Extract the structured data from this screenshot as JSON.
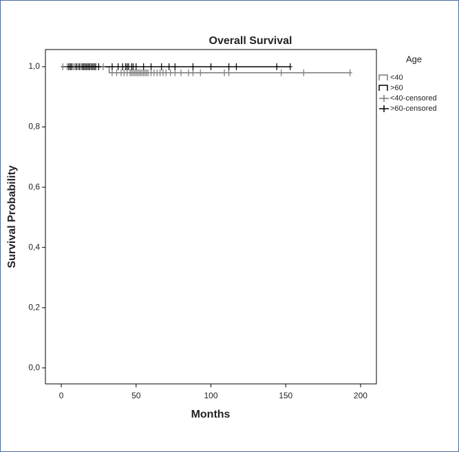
{
  "chart_data": {
    "type": "survival",
    "title": "Overall Survival",
    "x_label": "Months",
    "y_label": "Survival Probability",
    "legend_title": "Age",
    "legend_position": "right",
    "xlim": [
      -10.6,
      210.6
    ],
    "ylim": [
      -0.053,
      1.057
    ],
    "xticks": [
      0,
      50,
      100,
      150,
      200
    ],
    "yticks": [
      {
        "value": 0,
        "label": "0,0"
      },
      {
        "value": 0.2,
        "label": "0,2"
      },
      {
        "value": 0.4,
        "label": "0,4"
      },
      {
        "value": 0.6,
        "label": "0,6"
      },
      {
        "value": 0.8,
        "label": "0,8"
      },
      {
        "value": 1,
        "label": "1,0"
      }
    ],
    "series": [
      {
        "name": "<40",
        "color": "#777777",
        "style": "step",
        "x": [
          0,
          32,
          193
        ],
        "values": [
          1,
          0.98,
          0.98
        ]
      },
      {
        "name": ">60",
        "color": "#000000",
        "style": "step",
        "x": [
          0,
          153
        ],
        "values": [
          1,
          1
        ]
      },
      {
        "name": "<40-censored",
        "color": "#777777",
        "style": "censor",
        "x": [
          1,
          4,
          6,
          8,
          9,
          10,
          11,
          12,
          13,
          14,
          15,
          17,
          19,
          22,
          25,
          28,
          34,
          37,
          40,
          42,
          44,
          46,
          47,
          48,
          49,
          50,
          51,
          52,
          53,
          54,
          55,
          56,
          57,
          58,
          60,
          62,
          64,
          66,
          68,
          70,
          73,
          76,
          80,
          85,
          88,
          93,
          109,
          112,
          147,
          162,
          193
        ],
        "values": [
          1,
          1,
          1,
          1,
          1,
          1,
          1,
          1,
          1,
          1,
          1,
          1,
          1,
          1,
          1,
          1,
          0.98,
          0.98,
          0.98,
          0.98,
          0.98,
          0.98,
          0.98,
          0.98,
          0.98,
          0.98,
          0.98,
          0.98,
          0.98,
          0.98,
          0.98,
          0.98,
          0.98,
          0.98,
          0.98,
          0.98,
          0.98,
          0.98,
          0.98,
          0.98,
          0.98,
          0.98,
          0.98,
          0.98,
          0.98,
          0.98,
          0.98,
          0.98,
          0.98,
          0.98,
          0.98
        ]
      },
      {
        "name": ">60-censored",
        "color": "#000000",
        "style": "censor",
        "x": [
          5,
          6,
          7,
          10,
          12,
          14,
          15,
          16,
          17,
          18,
          19,
          20,
          21,
          22,
          23,
          25,
          34,
          38,
          41,
          43,
          44,
          45,
          47,
          48,
          50,
          55,
          60,
          67,
          72,
          76,
          88,
          100,
          112,
          117,
          144,
          153
        ],
        "values": [
          1,
          1,
          1,
          1,
          1,
          1,
          1,
          1,
          1,
          1,
          1,
          1,
          1,
          1,
          1,
          1,
          1,
          1,
          1,
          1,
          1,
          1,
          1,
          1,
          1,
          1,
          1,
          1,
          1,
          1,
          1,
          1,
          1,
          1,
          1,
          1
        ]
      }
    ]
  }
}
